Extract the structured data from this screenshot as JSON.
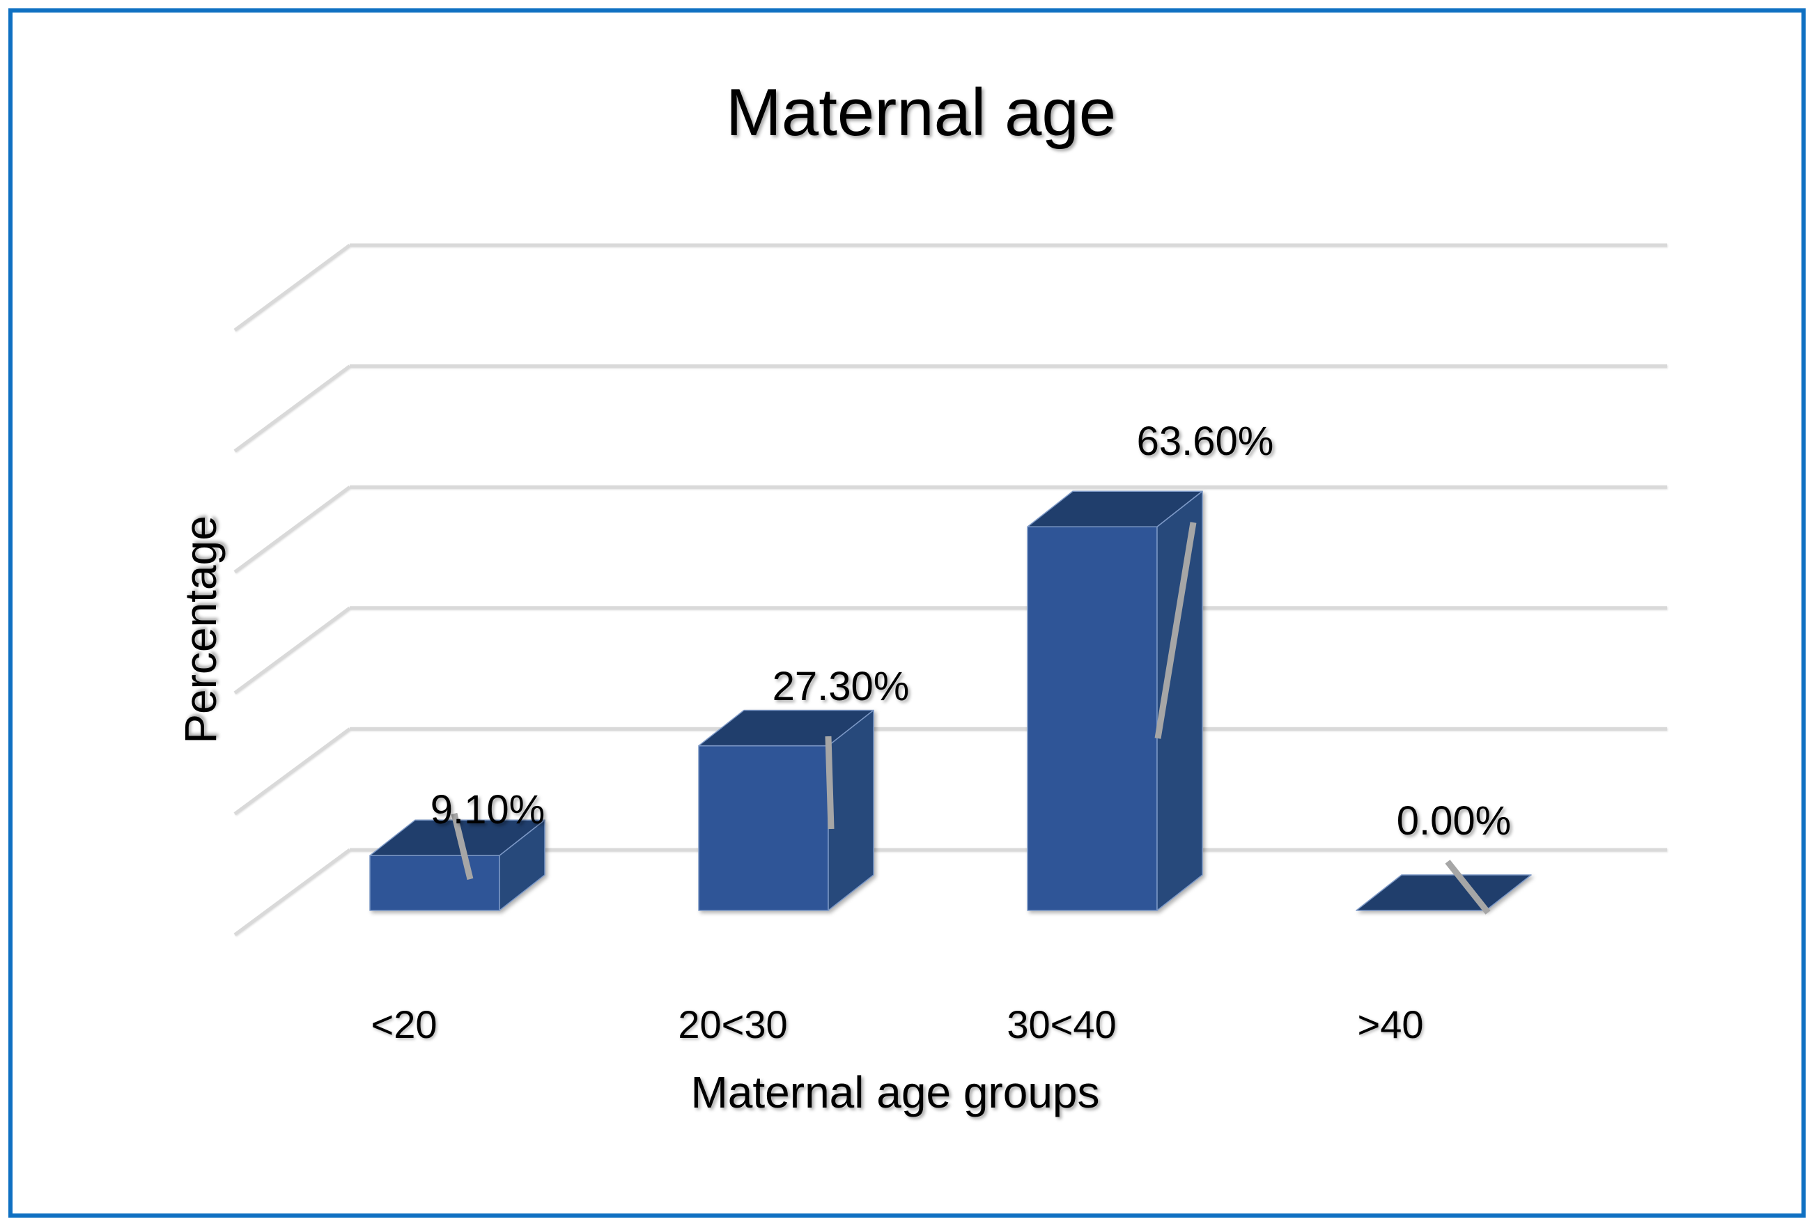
{
  "frame": {
    "border_color": "#0F70C2",
    "background_color": "#FFFFFF"
  },
  "chart_data": {
    "type": "bar",
    "style": "3d-column",
    "title": "Maternal age",
    "xlabel": "Maternal age groups",
    "ylabel": "Percentage",
    "categories": [
      "<20",
      "20<30",
      "30<40",
      ">40"
    ],
    "values": [
      9.1,
      27.3,
      63.6,
      0.0
    ],
    "data_labels": [
      "9.10%",
      "27.30%",
      "63.60%",
      "0.00%"
    ],
    "ylim": [
      0,
      100
    ],
    "y_major_step": 20,
    "y_tick_labels_visible": false,
    "grid": true,
    "legend": "none",
    "colors": {
      "bar_front": "#2F5597",
      "bar_top": "#203E6C",
      "bar_side": "#27497B",
      "bar_edge": "#7D99C7",
      "gridline": "#D9D9D9",
      "leader_line": "#A6A6A6",
      "text": "#000000"
    }
  }
}
